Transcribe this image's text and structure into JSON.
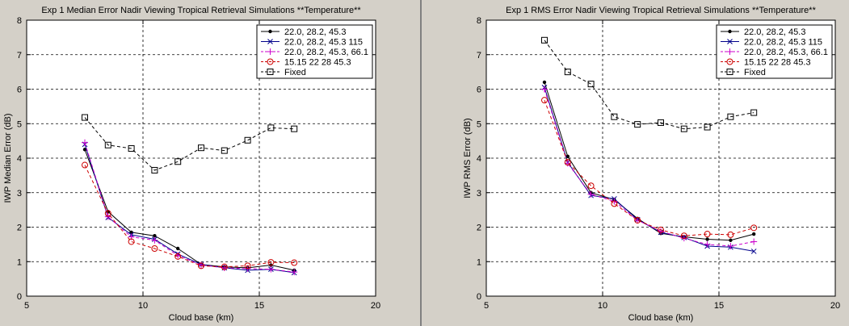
{
  "colors": {
    "figure_bg": "#d4d0c8",
    "axes_bg": "#ffffff",
    "divider": "#808080"
  },
  "chart_data": [
    {
      "type": "line",
      "title": "Exp 1 Median Error Nadir Viewing Tropical Retrieval Simulations **Temperature**",
      "xlabel": "Cloud base (km)",
      "ylabel": "IWP Median Error (dB)",
      "xlim": [
        5,
        20
      ],
      "ylim": [
        0,
        8
      ],
      "xticks": [
        "5",
        "10",
        "15",
        "20"
      ],
      "yticks": [
        "0",
        "1",
        "2",
        "3",
        "4",
        "5",
        "6",
        "7",
        "8"
      ],
      "grid": true,
      "legend_position": "top-right",
      "series": [
        {
          "name": "22.0, 28.2, 45.3",
          "color": "#000000",
          "marker": "dot",
          "dash": "solid",
          "x": [
            7.5,
            8.5,
            9.5,
            10.5,
            11.5,
            12.5,
            13.5,
            14.5,
            15.5,
            16.5
          ],
          "y": [
            4.25,
            2.45,
            1.85,
            1.75,
            1.38,
            0.92,
            0.85,
            0.82,
            0.9,
            0.75
          ]
        },
        {
          "name": "22.0, 28.2, 45.3 115",
          "color": "#00008b",
          "marker": "x",
          "dash": "solid",
          "x": [
            7.5,
            8.5,
            9.5,
            10.5,
            11.5,
            12.5,
            13.5,
            14.5,
            15.5,
            16.5
          ],
          "y": [
            4.4,
            2.28,
            1.78,
            1.65,
            1.22,
            0.92,
            0.82,
            0.75,
            0.78,
            0.68
          ]
        },
        {
          "name": "22.0, 28.2, 45.3, 66.1",
          "color": "#cc00cc",
          "marker": "plus",
          "dash": "dashed",
          "x": [
            7.5,
            8.5,
            9.5,
            10.5,
            11.5,
            12.5,
            13.5,
            14.5,
            15.5,
            16.5
          ],
          "y": [
            4.45,
            2.3,
            1.72,
            1.62,
            1.18,
            0.9,
            0.82,
            0.8,
            0.78,
            0.7
          ]
        },
        {
          "name": "15.15 22 28 45.3",
          "color": "#cc0000",
          "marker": "circle",
          "dash": "dashed",
          "x": [
            7.5,
            8.5,
            9.5,
            10.5,
            11.5,
            12.5,
            13.5,
            14.5,
            15.5,
            16.5
          ],
          "y": [
            3.8,
            2.4,
            1.58,
            1.38,
            1.15,
            0.88,
            0.85,
            0.88,
            0.98,
            0.97
          ]
        },
        {
          "name": "Fixed",
          "color": "#000000",
          "marker": "square",
          "dash": "dashed",
          "x": [
            7.5,
            8.5,
            9.5,
            10.5,
            11.5,
            12.5,
            13.5,
            14.5,
            15.5,
            16.5
          ],
          "y": [
            5.18,
            4.38,
            4.28,
            3.65,
            3.9,
            4.3,
            4.22,
            4.52,
            4.88,
            4.85
          ]
        }
      ]
    },
    {
      "type": "line",
      "title": "Exp 1 RMS Error Nadir Viewing Tropical Retrieval Simulations **Temperature**",
      "xlabel": "Cloud base (km)",
      "ylabel": "IWP RMS Error (dB)",
      "xlim": [
        5,
        20
      ],
      "ylim": [
        0,
        8
      ],
      "xticks": [
        "5",
        "10",
        "15",
        "20"
      ],
      "yticks": [
        "0",
        "1",
        "2",
        "3",
        "4",
        "5",
        "6",
        "7",
        "8"
      ],
      "grid": true,
      "legend_position": "top-right",
      "series": [
        {
          "name": "22.0, 28.2, 45.3",
          "color": "#000000",
          "marker": "dot",
          "dash": "solid",
          "x": [
            7.5,
            8.5,
            9.5,
            10.5,
            11.5,
            12.5,
            13.5,
            14.5,
            15.5,
            16.5
          ],
          "y": [
            6.2,
            4.05,
            3.0,
            2.8,
            2.25,
            1.82,
            1.72,
            1.65,
            1.62,
            1.8
          ]
        },
        {
          "name": "22.0, 28.2, 45.3 115",
          "color": "#00008b",
          "marker": "x",
          "dash": "solid",
          "x": [
            7.5,
            8.5,
            9.5,
            10.5,
            11.5,
            12.5,
            13.5,
            14.5,
            15.5,
            16.5
          ],
          "y": [
            6.05,
            3.88,
            2.92,
            2.82,
            2.22,
            1.85,
            1.7,
            1.45,
            1.42,
            1.3
          ]
        },
        {
          "name": "22.0, 28.2, 45.3, 66.1",
          "color": "#cc00cc",
          "marker": "plus",
          "dash": "dashed",
          "x": [
            7.5,
            8.5,
            9.5,
            10.5,
            11.5,
            12.5,
            13.5,
            14.5,
            15.5,
            16.5
          ],
          "y": [
            6.0,
            3.85,
            2.95,
            2.75,
            2.2,
            1.88,
            1.68,
            1.5,
            1.45,
            1.58
          ]
        },
        {
          "name": "15.15 22 28 45.3",
          "color": "#cc0000",
          "marker": "circle",
          "dash": "dashed",
          "x": [
            7.5,
            8.5,
            9.5,
            10.5,
            11.5,
            12.5,
            13.5,
            14.5,
            15.5,
            16.5
          ],
          "y": [
            5.68,
            3.88,
            3.2,
            2.68,
            2.2,
            1.92,
            1.75,
            1.8,
            1.78,
            1.98
          ]
        },
        {
          "name": "Fixed",
          "color": "#000000",
          "marker": "square",
          "dash": "dashed",
          "x": [
            7.5,
            8.5,
            9.5,
            10.5,
            11.5,
            12.5,
            13.5,
            14.5,
            15.5,
            16.5
          ],
          "y": [
            7.42,
            6.5,
            6.15,
            5.2,
            4.98,
            5.03,
            4.85,
            4.9,
            5.2,
            5.32
          ]
        }
      ]
    }
  ]
}
